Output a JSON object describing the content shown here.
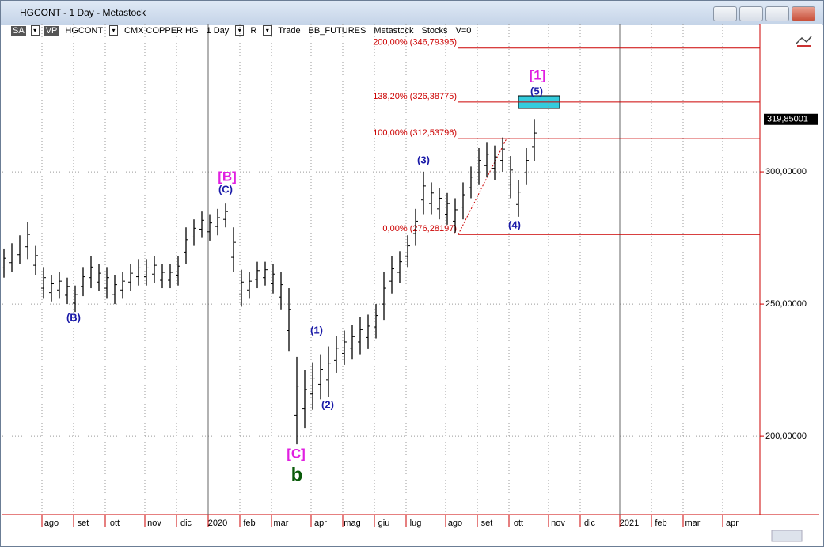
{
  "window": {
    "title": "HGCONT - 1 Day - Metastock"
  },
  "toolbar": {
    "items": [
      "SA",
      "VP",
      "HGCONT",
      "CMX COPPER HG",
      "1 Day",
      "R",
      "Trade",
      "BB_FUTURES",
      "Metastock",
      "Stocks",
      "V=0"
    ]
  },
  "chart_data": {
    "type": "hl-bars",
    "categories": [
      null,
      null,
      null,
      null,
      null,
      null,
      "ago",
      null,
      null,
      null,
      "set",
      null,
      null,
      null,
      "ott",
      null,
      null,
      null,
      null,
      "nov",
      null,
      null,
      null,
      "dic",
      null,
      null,
      null,
      "2020",
      null,
      null,
      null,
      "feb",
      null,
      null,
      null,
      "mar",
      null,
      null,
      null,
      null,
      "apr",
      null,
      null,
      null,
      "mag",
      null,
      null,
      null,
      "giu",
      null,
      null,
      null,
      "lug",
      null,
      null,
      null,
      null,
      "ago",
      null,
      null,
      null,
      "set",
      null,
      null,
      null,
      "ott",
      null,
      null,
      null,
      null,
      "nov",
      null,
      null,
      null,
      "dic",
      null,
      null,
      null,
      null,
      "2021",
      null,
      null,
      null,
      "feb",
      null,
      null,
      null,
      "mar",
      null,
      null,
      null,
      null,
      "apr",
      null,
      null,
      null
    ],
    "low": [
      260,
      262,
      265,
      267,
      261,
      252,
      251,
      252,
      250,
      247,
      253,
      256,
      255,
      252,
      250,
      252,
      255,
      257,
      257,
      258,
      256,
      256,
      257,
      265,
      272,
      275,
      274,
      276,
      279,
      262,
      249,
      252,
      256,
      257,
      254,
      248,
      232,
      197,
      203,
      210,
      214,
      215,
      224,
      227,
      229,
      231,
      233,
      237,
      244,
      254,
      258,
      264,
      272,
      284,
      284,
      282,
      280,
      277,
      282,
      290,
      295,
      298,
      297,
      300,
      290,
      283,
      295,
      304,
      null,
      null,
      null,
      null,
      null,
      null,
      null,
      null,
      null,
      null,
      null,
      null,
      null,
      null,
      null,
      null,
      null,
      null,
      null,
      null,
      null,
      null,
      null,
      null,
      null,
      null,
      null,
      null
    ],
    "high": [
      271,
      273,
      276,
      281,
      272,
      264,
      261,
      262,
      260,
      257,
      264,
      268,
      265,
      264,
      261,
      262,
      265,
      267,
      267,
      268,
      265,
      265,
      268,
      279,
      282,
      285,
      284,
      286,
      288,
      279,
      263,
      262,
      266,
      266,
      265,
      262,
      256,
      230,
      225,
      228,
      231,
      234,
      238,
      240,
      242,
      245,
      246,
      250,
      262,
      268,
      270,
      276,
      286,
      300,
      296,
      294,
      292,
      290,
      296,
      302,
      309,
      311,
      310,
      313,
      306,
      297,
      309,
      320,
      null,
      null,
      null,
      null,
      null,
      null,
      null,
      null,
      null,
      null,
      null,
      null,
      null,
      null,
      null,
      null,
      null,
      null,
      null,
      null,
      null,
      null,
      null,
      null,
      null,
      null,
      null,
      null
    ],
    "color": "#000000",
    "ylim": [
      170.4,
      356
    ],
    "yticks": [
      {
        "value": 200,
        "label": "200,00000"
      },
      {
        "value": 250,
        "label": "250,00000"
      },
      {
        "value": 300,
        "label": "300,00000"
      }
    ],
    "grid": true,
    "levels": [
      {
        "label": "200,00% (346,79395)",
        "value": 346.79395
      },
      {
        "label": "138,20% (326,38775)",
        "value": 326.38775
      },
      {
        "label": "100,00% (312,53796)",
        "value": 312.53796
      },
      {
        "label": "0,00% (276,28197)",
        "value": 276.28197
      }
    ],
    "level_color": "#cc0000",
    "last_price": {
      "value": 319.85001,
      "label": "319,85001"
    },
    "annotations": [
      {
        "text": "(B)",
        "color": "#1a1aa8"
      },
      {
        "text": "[B]",
        "color": "#e020e0"
      },
      {
        "text": "(C)",
        "color": "#1a1aa8"
      },
      {
        "text": "[C]",
        "color": "#e020e0"
      },
      {
        "text": "b",
        "color": "#0a5a0a"
      },
      {
        "text": "(1)",
        "color": "#1a1aa8"
      },
      {
        "text": "(2)",
        "color": "#1a1aa8"
      },
      {
        "text": "(3)",
        "color": "#1a1aa8"
      },
      {
        "text": "(4)",
        "color": "#1a1aa8"
      },
      {
        "text": "(5)",
        "color": "#1a1aa8"
      },
      {
        "text": "[1]",
        "color": "#e020e0"
      }
    ]
  }
}
